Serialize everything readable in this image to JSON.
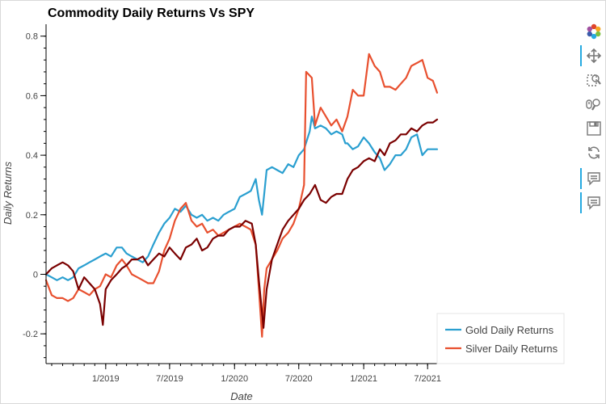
{
  "chart_data": {
    "type": "line",
    "title": "Commodity Daily Returns Vs SPY",
    "xlabel": "Date",
    "ylabel": "Daily Returns",
    "xlim": [
      "2018-07-16",
      "2021-07-28"
    ],
    "ylim": [
      -0.3,
      0.84
    ],
    "yticks": [
      -0.2,
      0,
      0.2,
      0.4,
      0.6,
      0.8
    ],
    "ytick_labels": [
      "-0.2",
      "0",
      "0.2",
      "0.4",
      "0.6",
      "0.8"
    ],
    "xticks": [
      "2019-01-01",
      "2019-07-01",
      "2020-01-01",
      "2020-07-01",
      "2021-01-01",
      "2021-07-01"
    ],
    "xtick_labels": [
      "1/2019",
      "7/2019",
      "1/2020",
      "7/2020",
      "1/2021",
      "7/2021"
    ],
    "grid": false,
    "legend_position": "bottom-right, outside plot",
    "series": [
      {
        "name": "Gold Daily Returns",
        "color": "#2a9fd0",
        "legend": true,
        "x": [
          "2018-07-16",
          "2018-08-01",
          "2018-08-16",
          "2018-09-01",
          "2018-09-16",
          "2018-10-01",
          "2018-10-16",
          "2018-11-01",
          "2018-11-16",
          "2018-12-01",
          "2018-12-16",
          "2019-01-01",
          "2019-01-16",
          "2019-02-01",
          "2019-02-16",
          "2019-03-01",
          "2019-03-16",
          "2019-04-01",
          "2019-04-16",
          "2019-05-01",
          "2019-05-16",
          "2019-06-01",
          "2019-06-16",
          "2019-07-01",
          "2019-07-16",
          "2019-08-01",
          "2019-08-16",
          "2019-09-01",
          "2019-09-16",
          "2019-10-01",
          "2019-10-16",
          "2019-11-01",
          "2019-11-16",
          "2019-12-01",
          "2019-12-16",
          "2020-01-01",
          "2020-01-16",
          "2020-02-01",
          "2020-02-16",
          "2020-03-01",
          "2020-03-10",
          "2020-03-19",
          "2020-03-25",
          "2020-04-01",
          "2020-04-16",
          "2020-05-01",
          "2020-05-16",
          "2020-06-01",
          "2020-06-16",
          "2020-07-01",
          "2020-07-16",
          "2020-08-01",
          "2020-08-07",
          "2020-08-16",
          "2020-09-01",
          "2020-09-16",
          "2020-10-01",
          "2020-10-16",
          "2020-11-01",
          "2020-11-10",
          "2020-11-16",
          "2020-12-01",
          "2020-12-16",
          "2021-01-01",
          "2021-01-16",
          "2021-02-01",
          "2021-02-16",
          "2021-03-01",
          "2021-03-16",
          "2021-04-01",
          "2021-04-16",
          "2021-05-01",
          "2021-05-16",
          "2021-06-01",
          "2021-06-16",
          "2021-07-01",
          "2021-07-16",
          "2021-07-28"
        ],
        "values": [
          0.0,
          -0.01,
          -0.02,
          -0.01,
          -0.02,
          -0.01,
          0.02,
          0.03,
          0.04,
          0.05,
          0.06,
          0.07,
          0.06,
          0.09,
          0.09,
          0.07,
          0.06,
          0.05,
          0.04,
          0.06,
          0.1,
          0.14,
          0.17,
          0.19,
          0.22,
          0.21,
          0.23,
          0.2,
          0.19,
          0.2,
          0.18,
          0.19,
          0.18,
          0.2,
          0.21,
          0.22,
          0.26,
          0.27,
          0.28,
          0.32,
          0.25,
          0.2,
          0.27,
          0.35,
          0.36,
          0.35,
          0.34,
          0.37,
          0.36,
          0.4,
          0.42,
          0.48,
          0.53,
          0.49,
          0.5,
          0.49,
          0.47,
          0.48,
          0.47,
          0.44,
          0.44,
          0.42,
          0.43,
          0.46,
          0.44,
          0.41,
          0.39,
          0.35,
          0.37,
          0.4,
          0.4,
          0.42,
          0.46,
          0.47,
          0.4,
          0.42,
          0.42,
          0.42
        ]
      },
      {
        "name": "Silver Daily Returns",
        "color": "#e8502f",
        "legend": true,
        "x": [
          "2018-07-16",
          "2018-08-01",
          "2018-08-16",
          "2018-09-01",
          "2018-09-16",
          "2018-10-01",
          "2018-10-16",
          "2018-11-01",
          "2018-11-16",
          "2018-12-01",
          "2018-12-16",
          "2019-01-01",
          "2019-01-16",
          "2019-02-01",
          "2019-02-16",
          "2019-03-01",
          "2019-03-16",
          "2019-04-01",
          "2019-04-16",
          "2019-05-01",
          "2019-05-16",
          "2019-06-01",
          "2019-06-16",
          "2019-07-01",
          "2019-07-16",
          "2019-08-01",
          "2019-08-16",
          "2019-09-01",
          "2019-09-16",
          "2019-10-01",
          "2019-10-16",
          "2019-11-01",
          "2019-11-16",
          "2019-12-01",
          "2019-12-16",
          "2020-01-01",
          "2020-01-16",
          "2020-02-01",
          "2020-02-16",
          "2020-03-01",
          "2020-03-10",
          "2020-03-19",
          "2020-03-25",
          "2020-04-01",
          "2020-04-16",
          "2020-05-01",
          "2020-05-16",
          "2020-06-01",
          "2020-06-16",
          "2020-07-01",
          "2020-07-16",
          "2020-07-22",
          "2020-08-07",
          "2020-08-16",
          "2020-09-01",
          "2020-09-16",
          "2020-10-01",
          "2020-10-16",
          "2020-11-01",
          "2020-11-16",
          "2020-12-01",
          "2020-12-16",
          "2021-01-01",
          "2021-01-16",
          "2021-02-01",
          "2021-02-16",
          "2021-03-01",
          "2021-03-16",
          "2021-04-01",
          "2021-04-16",
          "2021-05-01",
          "2021-05-16",
          "2021-06-01",
          "2021-06-16",
          "2021-07-01",
          "2021-07-16",
          "2021-07-28"
        ],
        "values": [
          -0.02,
          -0.07,
          -0.08,
          -0.08,
          -0.09,
          -0.08,
          -0.05,
          -0.06,
          -0.07,
          -0.05,
          -0.04,
          0.0,
          -0.01,
          0.03,
          0.05,
          0.03,
          0.0,
          -0.01,
          -0.02,
          -0.03,
          -0.03,
          0.01,
          0.08,
          0.12,
          0.18,
          0.22,
          0.24,
          0.18,
          0.16,
          0.17,
          0.14,
          0.15,
          0.13,
          0.14,
          0.15,
          0.16,
          0.17,
          0.16,
          0.15,
          0.1,
          -0.05,
          -0.21,
          -0.05,
          0.02,
          0.05,
          0.08,
          0.12,
          0.14,
          0.17,
          0.22,
          0.3,
          0.68,
          0.66,
          0.5,
          0.56,
          0.53,
          0.5,
          0.52,
          0.48,
          0.53,
          0.62,
          0.6,
          0.6,
          0.74,
          0.7,
          0.68,
          0.63,
          0.63,
          0.62,
          0.64,
          0.66,
          0.7,
          0.71,
          0.72,
          0.66,
          0.65,
          0.61
        ]
      },
      {
        "name": "",
        "color": "#7a0000",
        "legend": false,
        "x": [
          "2018-07-16",
          "2018-08-01",
          "2018-08-16",
          "2018-09-01",
          "2018-09-16",
          "2018-10-01",
          "2018-10-16",
          "2018-11-01",
          "2018-11-16",
          "2018-12-01",
          "2018-12-16",
          "2018-12-24",
          "2019-01-01",
          "2019-01-16",
          "2019-02-01",
          "2019-02-16",
          "2019-03-01",
          "2019-03-16",
          "2019-04-01",
          "2019-04-16",
          "2019-05-01",
          "2019-05-16",
          "2019-06-01",
          "2019-06-16",
          "2019-07-01",
          "2019-07-16",
          "2019-08-01",
          "2019-08-16",
          "2019-09-01",
          "2019-09-16",
          "2019-10-01",
          "2019-10-16",
          "2019-11-01",
          "2019-11-16",
          "2019-12-01",
          "2019-12-16",
          "2020-01-01",
          "2020-01-16",
          "2020-02-01",
          "2020-02-19",
          "2020-03-01",
          "2020-03-10",
          "2020-03-23",
          "2020-04-01",
          "2020-04-16",
          "2020-05-01",
          "2020-05-16",
          "2020-06-01",
          "2020-06-16",
          "2020-07-01",
          "2020-07-16",
          "2020-08-01",
          "2020-08-16",
          "2020-09-01",
          "2020-09-16",
          "2020-10-01",
          "2020-10-16",
          "2020-11-01",
          "2020-11-16",
          "2020-12-01",
          "2020-12-16",
          "2021-01-01",
          "2021-01-16",
          "2021-02-01",
          "2021-02-16",
          "2021-03-01",
          "2021-03-16",
          "2021-04-01",
          "2021-04-16",
          "2021-05-01",
          "2021-05-16",
          "2021-06-01",
          "2021-06-16",
          "2021-07-01",
          "2021-07-16",
          "2021-07-28"
        ],
        "values": [
          0.0,
          0.02,
          0.03,
          0.04,
          0.03,
          0.01,
          -0.05,
          -0.01,
          -0.03,
          -0.05,
          -0.1,
          -0.17,
          -0.05,
          -0.02,
          0.0,
          0.02,
          0.03,
          0.05,
          0.05,
          0.06,
          0.03,
          0.05,
          0.07,
          0.06,
          0.09,
          0.07,
          0.05,
          0.09,
          0.1,
          0.12,
          0.08,
          0.09,
          0.12,
          0.13,
          0.13,
          0.15,
          0.16,
          0.16,
          0.18,
          0.17,
          0.1,
          -0.02,
          -0.18,
          -0.05,
          0.05,
          0.1,
          0.15,
          0.18,
          0.2,
          0.22,
          0.25,
          0.27,
          0.3,
          0.25,
          0.24,
          0.26,
          0.27,
          0.27,
          0.32,
          0.35,
          0.36,
          0.38,
          0.39,
          0.38,
          0.42,
          0.4,
          0.44,
          0.45,
          0.47,
          0.47,
          0.49,
          0.48,
          0.5,
          0.51,
          0.51,
          0.52
        ]
      }
    ]
  },
  "toolbar": {
    "tools": [
      "bokeh-logo-icon",
      "pan-icon",
      "box-zoom-icon",
      "wheel-zoom-icon",
      "save-icon",
      "reset-icon",
      "hover-icon",
      "hover-icon"
    ]
  }
}
